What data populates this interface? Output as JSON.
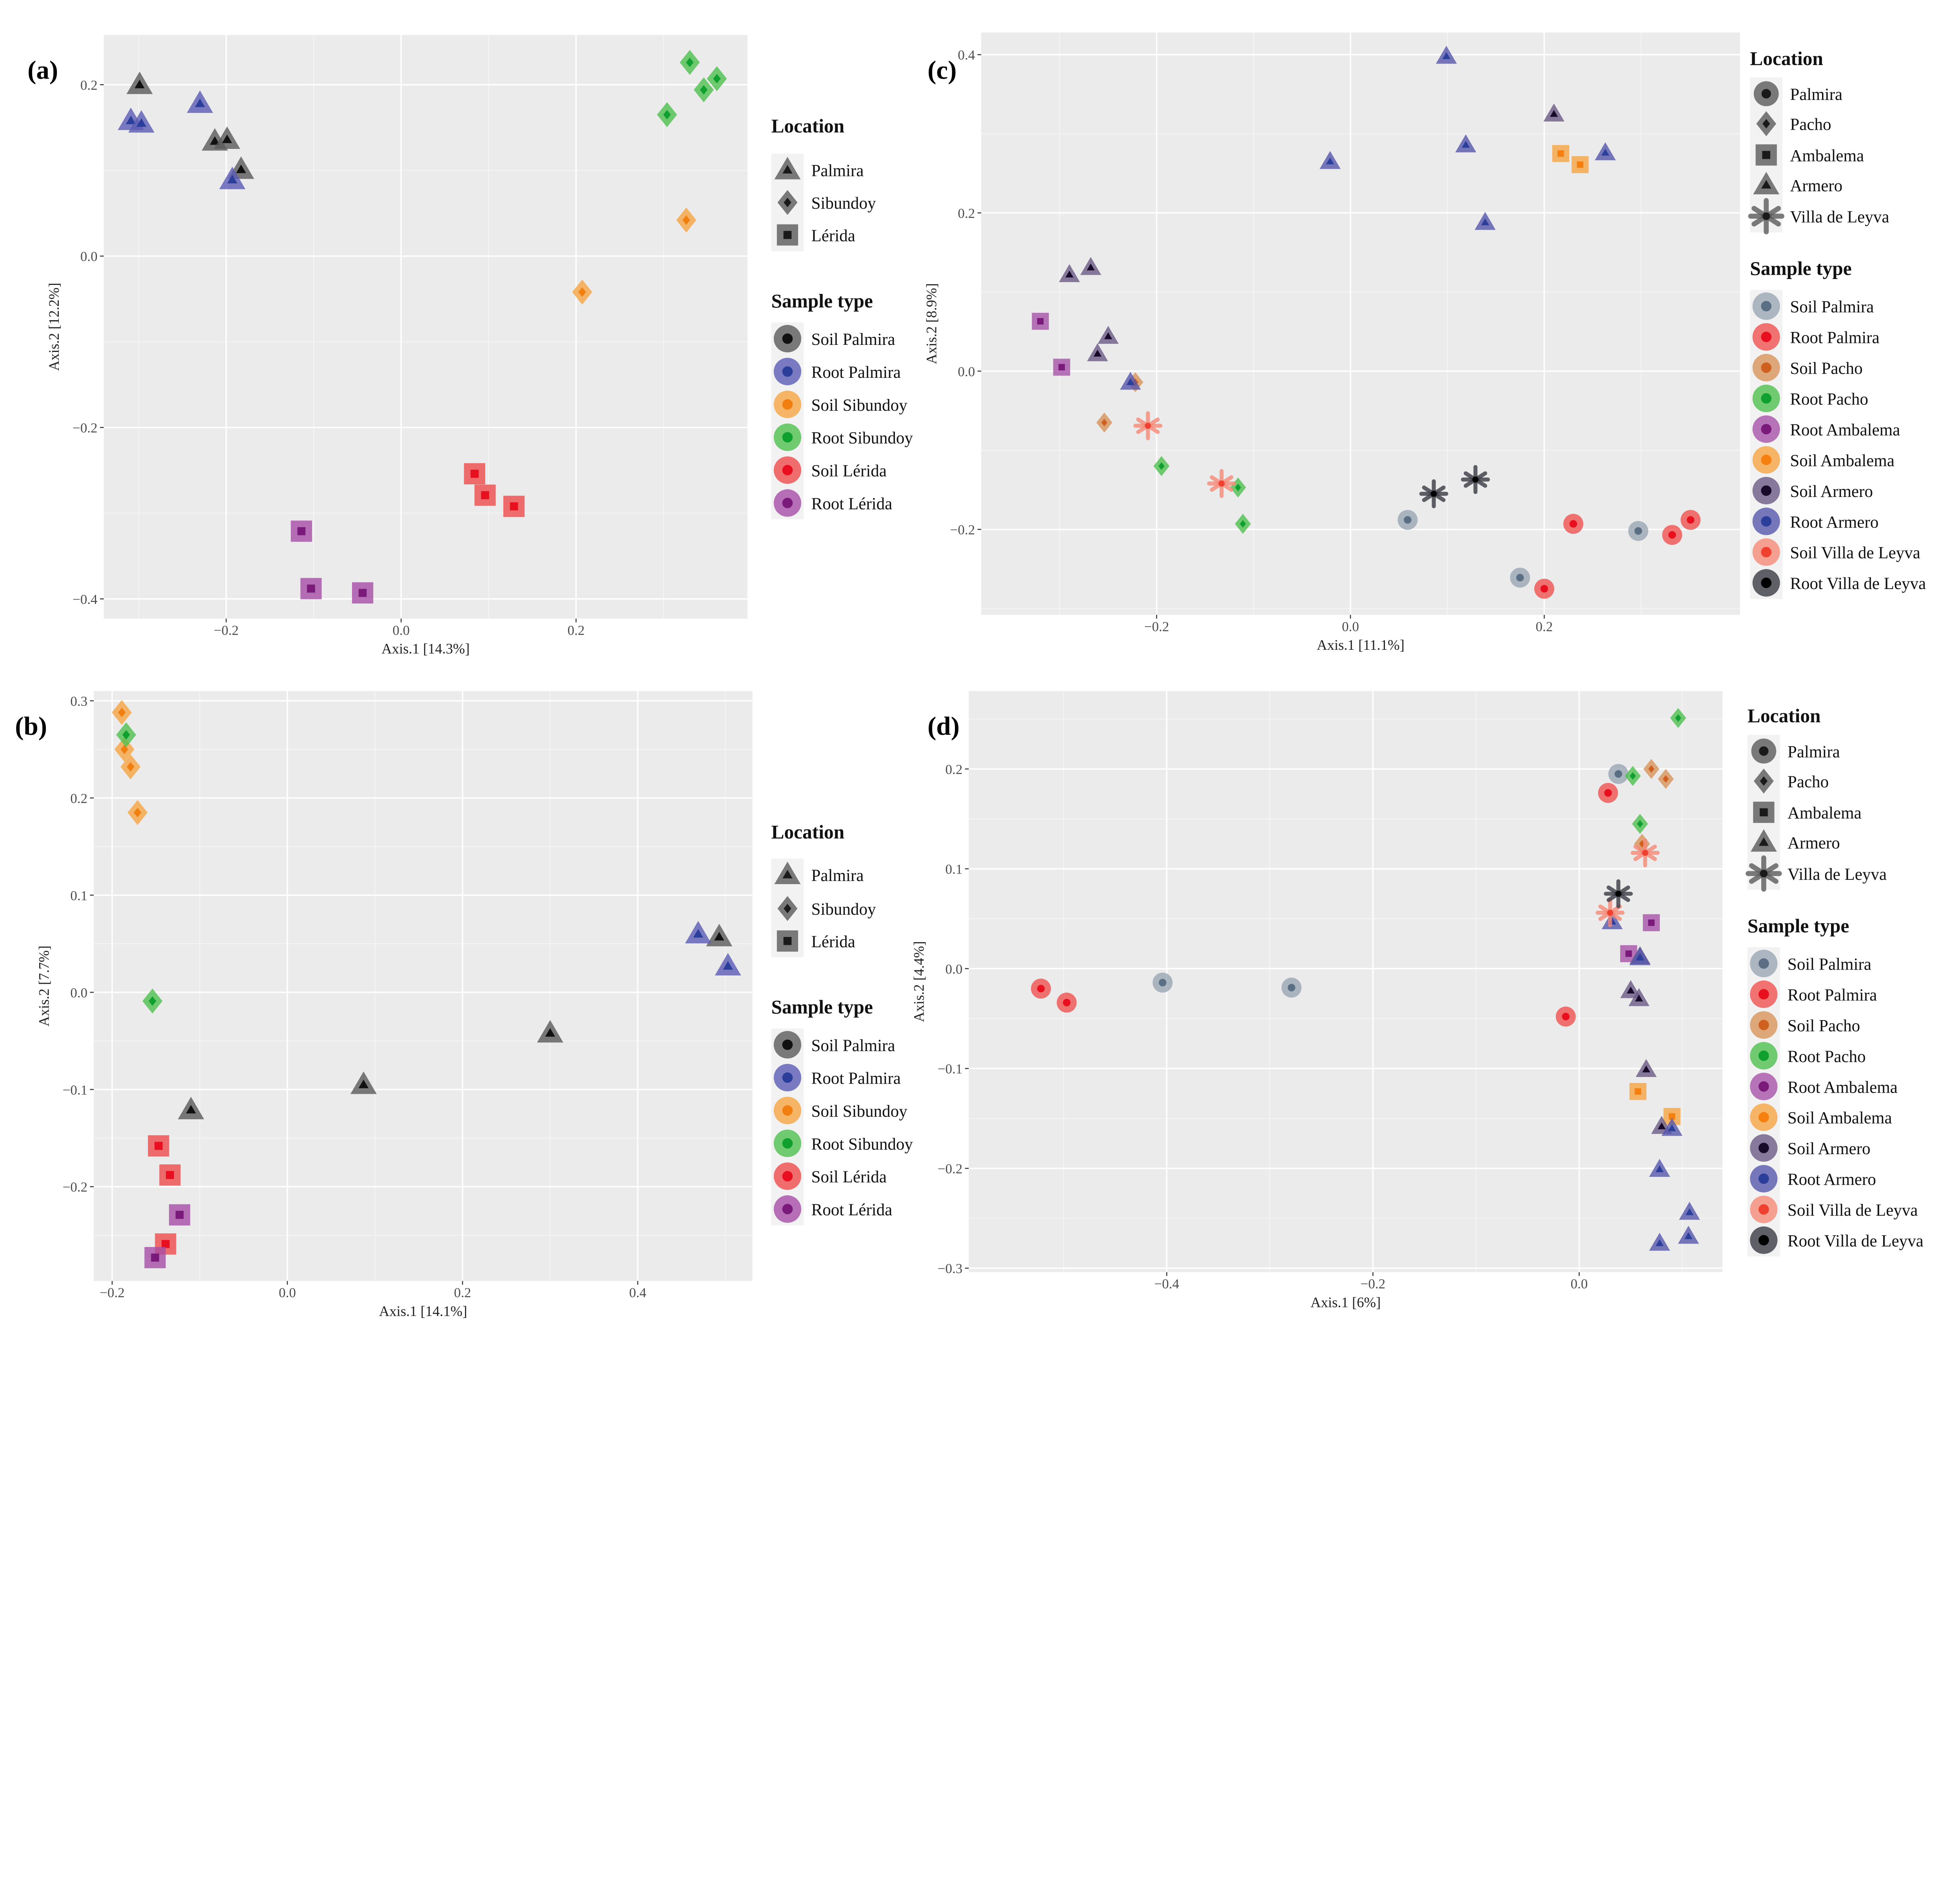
{
  "chart_data": [
    {
      "type": "scatter",
      "panel_label": "(a)",
      "xlabel": "Axis.1  [14.3%]",
      "ylabel": "Axis.2  [12.2%]",
      "xlim": [
        -0.34,
        0.396
      ],
      "ylim": [
        -0.423,
        0.258
      ],
      "xticks": [
        -0.2,
        0.0,
        0.2
      ],
      "xtick_labels": [
        "−0.2",
        "0.0",
        "0.2"
      ],
      "yticks": [
        0.2,
        0.0,
        -0.2,
        -0.4
      ],
      "ytick_labels": [
        "0.2",
        "0.0",
        "−0.2",
        "−0.4"
      ],
      "grid": true,
      "legend_location": {
        "title": "Location",
        "items": [
          {
            "name": "Palmira",
            "shape": "triangle"
          },
          {
            "name": "Sibundoy",
            "shape": "diamond"
          },
          {
            "name": "Lérida",
            "shape": "square"
          }
        ]
      },
      "legend_sample": {
        "title": "Sample type",
        "items": [
          {
            "name": "Soil Palmira",
            "color": "#5a5a5a",
            "inner": "#111111"
          },
          {
            "name": "Root Palmira",
            "color": "#5b5bb5",
            "inner": "#2a3e9a"
          },
          {
            "name": "Soil Sibundoy",
            "color": "#f5a442",
            "inner": "#f07f10"
          },
          {
            "name": "Root Sibundoy",
            "color": "#4fbf4f",
            "inner": "#10a030"
          },
          {
            "name": "Soil Lérida",
            "color": "#ef4b4b",
            "inner": "#e81020"
          },
          {
            "name": "Root Lérida",
            "color": "#a64ca6",
            "inner": "#7a1a7a"
          }
        ]
      },
      "series": [
        {
          "sample": "Soil Palmira",
          "location": "Palmira",
          "points": [
            [
              -0.299,
              0.2
            ],
            [
              -0.213,
              0.134
            ],
            [
              -0.199,
              0.136
            ],
            [
              -0.183,
              0.101
            ]
          ]
        },
        {
          "sample": "Root Palmira",
          "location": "Palmira",
          "points": [
            [
              -0.309,
              0.158
            ],
            [
              -0.297,
              0.155
            ],
            [
              -0.23,
              0.178
            ],
            [
              -0.193,
              0.089
            ]
          ]
        },
        {
          "sample": "Soil Sibundoy",
          "location": "Sibundoy",
          "points": [
            [
              0.326,
              0.042
            ],
            [
              0.207,
              -0.042
            ]
          ]
        },
        {
          "sample": "Root Sibundoy",
          "location": "Sibundoy",
          "points": [
            [
              0.304,
              0.165
            ],
            [
              0.33,
              0.226
            ],
            [
              0.346,
              0.194
            ],
            [
              0.361,
              0.207
            ]
          ]
        },
        {
          "sample": "Soil Lérida",
          "location": "Lérida",
          "points": [
            [
              0.084,
              -0.254
            ],
            [
              0.096,
              -0.279
            ],
            [
              0.129,
              -0.292
            ]
          ]
        },
        {
          "sample": "Root Lérida",
          "location": "Lérida",
          "points": [
            [
              -0.114,
              -0.321
            ],
            [
              -0.103,
              -0.388
            ],
            [
              -0.044,
              -0.393
            ]
          ]
        }
      ]
    },
    {
      "type": "scatter",
      "panel_label": "(b)",
      "xlabel": "Axis.1  [14.1%]",
      "ylabel": "Axis.2  [7.7%]",
      "xlim": [
        -0.221,
        0.531
      ],
      "ylim": [
        -0.297,
        0.31
      ],
      "xticks": [
        -0.2,
        0.0,
        0.2,
        0.4
      ],
      "xtick_labels": [
        "−0.2",
        "0.0",
        "0.2",
        "0.4"
      ],
      "yticks": [
        0.3,
        0.2,
        0.1,
        0.0,
        -0.1,
        -0.2
      ],
      "ytick_labels": [
        "0.3",
        "0.2",
        "0.1",
        "0.0",
        "−0.1",
        "−0.2"
      ],
      "grid": true,
      "legend_location": {
        "title": "Location",
        "items": [
          {
            "name": "Palmira",
            "shape": "triangle"
          },
          {
            "name": "Sibundoy",
            "shape": "diamond"
          },
          {
            "name": "Lérida",
            "shape": "square"
          }
        ]
      },
      "legend_sample": {
        "title": "Sample type",
        "items": [
          {
            "name": "Soil Palmira",
            "color": "#5a5a5a",
            "inner": "#111111"
          },
          {
            "name": "Root Palmira",
            "color": "#5b5bb5",
            "inner": "#2a3e9a"
          },
          {
            "name": "Soil Sibundoy",
            "color": "#f5a442",
            "inner": "#f07f10"
          },
          {
            "name": "Root Sibundoy",
            "color": "#4fbf4f",
            "inner": "#10a030"
          },
          {
            "name": "Soil Lérida",
            "color": "#ef4b4b",
            "inner": "#e81020"
          },
          {
            "name": "Root Lérida",
            "color": "#a64ca6",
            "inner": "#7a1a7a"
          }
        ]
      },
      "series": [
        {
          "sample": "Soil Palmira",
          "location": "Palmira",
          "points": [
            [
              0.493,
              0.057
            ],
            [
              0.3,
              -0.042
            ],
            [
              0.087,
              -0.095
            ],
            [
              -0.11,
              -0.121
            ]
          ]
        },
        {
          "sample": "Root Palmira",
          "location": "Palmira",
          "points": [
            [
              0.469,
              0.06
            ],
            [
              0.503,
              0.027
            ]
          ]
        },
        {
          "sample": "Soil Sibundoy",
          "location": "Sibundoy",
          "points": [
            [
              -0.189,
              0.288
            ],
            [
              -0.186,
              0.25
            ],
            [
              -0.179,
              0.232
            ],
            [
              -0.171,
              0.185
            ]
          ]
        },
        {
          "sample": "Root Sibundoy",
          "location": "Sibundoy",
          "points": [
            [
              -0.184,
              0.265
            ],
            [
              -0.154,
              -0.009
            ]
          ]
        },
        {
          "sample": "Soil Lérida",
          "location": "Lérida",
          "points": [
            [
              -0.147,
              -0.158
            ],
            [
              -0.134,
              -0.188
            ],
            [
              -0.139,
              -0.259
            ]
          ]
        },
        {
          "sample": "Root Lérida",
          "location": "Lérida",
          "points": [
            [
              -0.123,
              -0.229
            ],
            [
              -0.151,
              -0.273
            ]
          ]
        }
      ]
    },
    {
      "type": "scatter",
      "panel_label": "(c)",
      "xlabel": "Axis.1  [11.1%]",
      "ylabel": "Axis.2  [8.9%]",
      "xlim": [
        -0.381,
        0.402
      ],
      "ylim": [
        -0.308,
        0.428
      ],
      "xticks": [
        -0.2,
        0.0,
        0.2
      ],
      "xtick_labels": [
        "−0.2",
        "0.0",
        "0.2"
      ],
      "yticks": [
        0.4,
        0.2,
        0.0,
        -0.2
      ],
      "ytick_labels": [
        "0.4",
        "0.2",
        "0.0",
        "−0.2"
      ],
      "grid": true,
      "legend_location": {
        "title": "Location",
        "items": [
          {
            "name": "Palmira",
            "shape": "circle"
          },
          {
            "name": "Pacho",
            "shape": "diamond"
          },
          {
            "name": "Ambalema",
            "shape": "square"
          },
          {
            "name": "Armero",
            "shape": "triangle"
          },
          {
            "name": "Villa de Leyva",
            "shape": "asterisk"
          }
        ]
      },
      "legend_sample": {
        "title": "Sample type",
        "items": [
          {
            "name": "Soil Palmira",
            "color": "#9aa6b4",
            "inner": "#5a6e84"
          },
          {
            "name": "Root Palmira",
            "color": "#ef5350",
            "inner": "#e8101e"
          },
          {
            "name": "Soil Pacho",
            "color": "#d8945a",
            "inner": "#d06020"
          },
          {
            "name": "Root Pacho",
            "color": "#4fbf4f",
            "inner": "#10a030"
          },
          {
            "name": "Root Ambalema",
            "color": "#a852a8",
            "inner": "#7a1a7a"
          },
          {
            "name": "Soil Ambalema",
            "color": "#f5a442",
            "inner": "#f58010"
          },
          {
            "name": "Soil Armero",
            "color": "#6a5a86",
            "inner": "#1a0a2a"
          },
          {
            "name": "Root Armero",
            "color": "#5656ac",
            "inner": "#2a3e9a"
          },
          {
            "name": "Soil Villa de Leyva",
            "color": "#f58a78",
            "inner": "#f04030"
          },
          {
            "name": "Root Villa de Leyva",
            "color": "#3a3a44",
            "inner": "#000000"
          }
        ]
      },
      "series": [
        {
          "sample": "Soil Palmira",
          "location": "Palmira",
          "points": [
            [
              0.059,
              -0.188
            ],
            [
              0.175,
              -0.261
            ],
            [
              0.297,
              -0.202
            ]
          ]
        },
        {
          "sample": "Root Palmira",
          "location": "Palmira",
          "points": [
            [
              0.23,
              -0.193
            ],
            [
              0.2,
              -0.275
            ],
            [
              0.332,
              -0.207
            ],
            [
              0.351,
              -0.188
            ]
          ]
        },
        {
          "sample": "Soil Pacho",
          "location": "Pacho",
          "points": [
            [
              -0.254,
              -0.065
            ],
            [
              -0.222,
              -0.014
            ]
          ]
        },
        {
          "sample": "Root Pacho",
          "location": "Pacho",
          "points": [
            [
              -0.195,
              -0.12
            ],
            [
              -0.116,
              -0.147
            ],
            [
              -0.111,
              -0.193
            ]
          ]
        },
        {
          "sample": "Root Ambalema",
          "location": "Ambalema",
          "points": [
            [
              -0.32,
              0.063
            ],
            [
              -0.298,
              0.005
            ]
          ]
        },
        {
          "sample": "Soil Ambalema",
          "location": "Ambalema",
          "points": [
            [
              0.217,
              0.275
            ],
            [
              0.237,
              0.261
            ]
          ]
        },
        {
          "sample": "Soil Armero",
          "location": "Armero",
          "points": [
            [
              -0.29,
              0.122
            ],
            [
              -0.268,
              0.131
            ],
            [
              -0.25,
              0.044
            ],
            [
              -0.261,
              0.022
            ],
            [
              0.21,
              0.325
            ]
          ]
        },
        {
          "sample": "Root Armero",
          "location": "Armero",
          "points": [
            [
              0.099,
              0.398
            ],
            [
              -0.021,
              0.265
            ],
            [
              0.119,
              0.286
            ],
            [
              0.139,
              0.188
            ],
            [
              0.263,
              0.276
            ],
            [
              -0.227,
              -0.014
            ]
          ]
        },
        {
          "sample": "Soil Villa de Leyva",
          "location": "Villa de Leyva",
          "points": [
            [
              -0.209,
              -0.069
            ],
            [
              -0.133,
              -0.142
            ]
          ]
        },
        {
          "sample": "Root Villa de Leyva",
          "location": "Villa de Leyva",
          "points": [
            [
              0.086,
              -0.155
            ],
            [
              0.129,
              -0.137
            ]
          ]
        }
      ]
    },
    {
      "type": "scatter",
      "panel_label": "(d)",
      "xlabel": "Axis.1  [6%]",
      "ylabel": "Axis.2  [4.4%]",
      "xlim": [
        -0.592,
        0.139
      ],
      "ylim": [
        -0.304,
        0.278
      ],
      "xticks": [
        -0.4,
        -0.2,
        0.0
      ],
      "xtick_labels": [
        "−0.4",
        "−0.2",
        "0.0"
      ],
      "yticks": [
        0.2,
        0.1,
        0.0,
        -0.1,
        -0.2,
        -0.3
      ],
      "ytick_labels": [
        "0.2",
        "0.1",
        "0.0",
        "−0.1",
        "−0.2",
        "−0.3"
      ],
      "grid": true,
      "legend_location": {
        "title": "Location",
        "items": [
          {
            "name": "Palmira",
            "shape": "circle"
          },
          {
            "name": "Pacho",
            "shape": "diamond"
          },
          {
            "name": "Ambalema",
            "shape": "square"
          },
          {
            "name": "Armero",
            "shape": "triangle"
          },
          {
            "name": "Villa de Leyva",
            "shape": "asterisk"
          }
        ]
      },
      "legend_sample": {
        "title": "Sample type",
        "items": [
          {
            "name": "Soil Palmira",
            "color": "#9aa6b4",
            "inner": "#5a6e84"
          },
          {
            "name": "Root Palmira",
            "color": "#ef5350",
            "inner": "#e8101e"
          },
          {
            "name": "Soil Pacho",
            "color": "#d8945a",
            "inner": "#d06020"
          },
          {
            "name": "Root Pacho",
            "color": "#4fbf4f",
            "inner": "#10a030"
          },
          {
            "name": "Root Ambalema",
            "color": "#a852a8",
            "inner": "#7a1a7a"
          },
          {
            "name": "Soil Ambalema",
            "color": "#f5a442",
            "inner": "#f58010"
          },
          {
            "name": "Soil Armero",
            "color": "#6a5a86",
            "inner": "#1a0a2a"
          },
          {
            "name": "Root Armero",
            "color": "#5656ac",
            "inner": "#2a3e9a"
          },
          {
            "name": "Soil Villa de Leyva",
            "color": "#f58a78",
            "inner": "#f04030"
          },
          {
            "name": "Root Villa de Leyva",
            "color": "#3a3a44",
            "inner": "#000000"
          }
        ]
      },
      "series": [
        {
          "sample": "Soil Palmira",
          "location": "Palmira",
          "points": [
            [
              -0.404,
              -0.014
            ],
            [
              -0.279,
              -0.019
            ],
            [
              0.038,
              0.195
            ]
          ]
        },
        {
          "sample": "Root Palmira",
          "location": "Palmira",
          "points": [
            [
              -0.522,
              -0.02
            ],
            [
              -0.497,
              -0.034
            ],
            [
              0.028,
              0.176
            ],
            [
              -0.013,
              -0.048
            ]
          ]
        },
        {
          "sample": "Soil Pacho",
          "location": "Pacho",
          "points": [
            [
              0.07,
              0.2
            ],
            [
              0.084,
              0.19
            ],
            [
              0.061,
              0.125
            ]
          ]
        },
        {
          "sample": "Root Pacho",
          "location": "Pacho",
          "points": [
            [
              0.096,
              0.251
            ],
            [
              0.052,
              0.193
            ],
            [
              0.059,
              0.145
            ]
          ]
        },
        {
          "sample": "Root Ambalema",
          "location": "Ambalema",
          "points": [
            [
              0.07,
              0.046
            ],
            [
              0.048,
              0.015
            ]
          ]
        },
        {
          "sample": "Soil Ambalema",
          "location": "Ambalema",
          "points": [
            [
              0.057,
              -0.123
            ],
            [
              0.09,
              -0.148
            ]
          ]
        },
        {
          "sample": "Soil Armero",
          "location": "Armero",
          "points": [
            [
              0.059,
              0.012
            ],
            [
              0.05,
              -0.022
            ],
            [
              0.058,
              -0.03
            ],
            [
              0.065,
              -0.101
            ],
            [
              0.08,
              -0.158
            ]
          ]
        },
        {
          "sample": "Root Armero",
          "location": "Armero",
          "points": [
            [
              0.032,
              0.047
            ],
            [
              0.059,
              0.011
            ],
            [
              0.09,
              -0.16
            ],
            [
              0.078,
              -0.201
            ],
            [
              0.107,
              -0.244
            ],
            [
              0.106,
              -0.268
            ],
            [
              0.078,
              -0.275
            ]
          ]
        },
        {
          "sample": "Soil Villa de Leyva",
          "location": "Villa de Leyva",
          "points": [
            [
              0.064,
              0.116
            ],
            [
              0.03,
              0.056
            ]
          ]
        },
        {
          "sample": "Root Villa de Leyva",
          "location": "Villa de Leyva",
          "points": [
            [
              0.038,
              0.075
            ]
          ]
        }
      ]
    }
  ]
}
